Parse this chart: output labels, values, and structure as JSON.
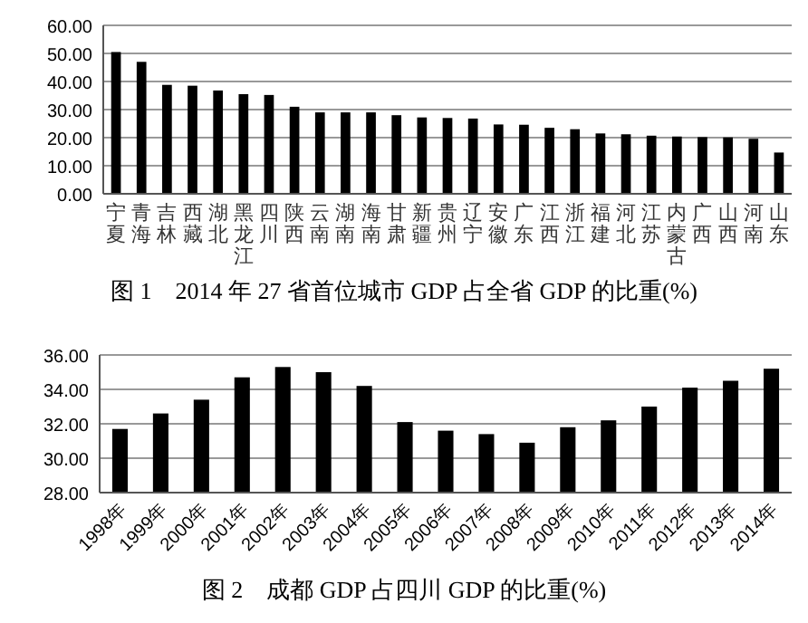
{
  "chart_data": [
    {
      "type": "bar",
      "title": "图 1　2014 年 27 省首位城市 GDP 占全省 GDP 的比重(%)",
      "categories": [
        "宁夏",
        "青海",
        "吉林",
        "西藏",
        "湖北",
        "黑龙江",
        "四川",
        "陕西",
        "云南",
        "湖南",
        "海南",
        "甘肃",
        "新疆",
        "贵州",
        "辽宁",
        "安徽",
        "广东",
        "江西",
        "浙江",
        "福建",
        "河北",
        "江苏",
        "内蒙古",
        "广西",
        "山西",
        "河南",
        "山东"
      ],
      "values": [
        50.5,
        47,
        38.8,
        38.5,
        36.8,
        35.5,
        35.2,
        31,
        29,
        29,
        29,
        28,
        27.2,
        27,
        26.8,
        24.7,
        24.6,
        23.5,
        23,
        21.5,
        21.2,
        20.7,
        20.4,
        20.2,
        20.1,
        19.6,
        14.7
      ],
      "color": "#000000",
      "ylim": [
        0,
        60
      ],
      "yticks": [
        {
          "value": 0,
          "label": "0.00"
        },
        {
          "value": 10,
          "label": "10.00"
        },
        {
          "value": 20,
          "label": "20.00"
        },
        {
          "value": 30,
          "label": "30.00"
        },
        {
          "value": 40,
          "label": "40.00"
        },
        {
          "value": 50,
          "label": "50.00"
        },
        {
          "value": 60,
          "label": "60.00"
        }
      ],
      "grid": "y"
    },
    {
      "type": "bar",
      "title": "图 2　成都 GDP 占四川 GDP 的比重(%)",
      "categories": [
        "1998年",
        "1999年",
        "2000年",
        "2001年",
        "2002年",
        "2003年",
        "2004年",
        "2005年",
        "2006年",
        "2007年",
        "2008年",
        "2009年",
        "2010年",
        "2011年",
        "2012年",
        "2013年",
        "2014年"
      ],
      "values": [
        31.7,
        32.6,
        33.4,
        34.7,
        35.3,
        35.0,
        34.2,
        32.1,
        31.6,
        31.4,
        30.9,
        31.8,
        32.2,
        33.0,
        34.1,
        34.5,
        35.2
      ],
      "color": "#000000",
      "ylim": [
        28,
        36
      ],
      "yticks": [
        {
          "value": 28,
          "label": "28.00"
        },
        {
          "value": 30,
          "label": "30.00"
        },
        {
          "value": 32,
          "label": "32.00"
        },
        {
          "value": 34,
          "label": "34.00"
        },
        {
          "value": 36,
          "label": "36.00"
        }
      ],
      "grid": "y"
    }
  ]
}
